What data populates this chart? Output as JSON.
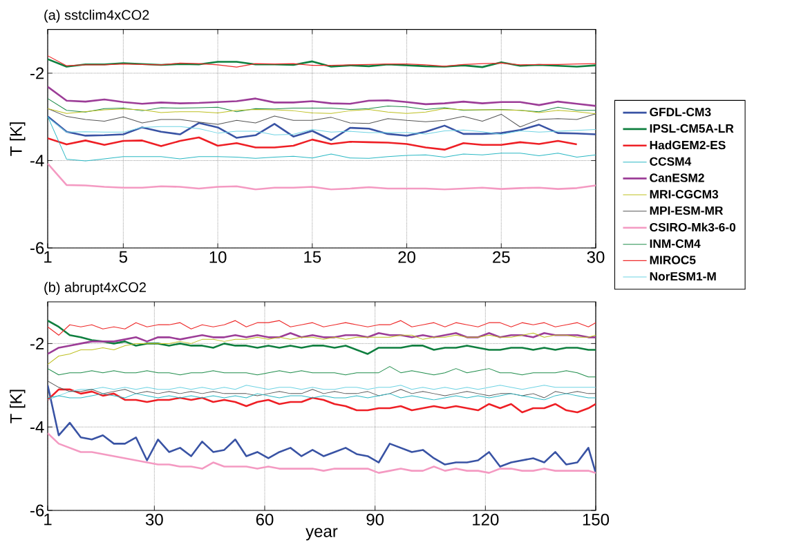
{
  "chart_data": [
    {
      "type": "line",
      "title": "(a)  sstclim4xCO2",
      "ylabel": "T [K]",
      "xlim": [
        1,
        30
      ],
      "ylim": [
        -6,
        -1
      ],
      "xticks": [
        1,
        5,
        10,
        15,
        20,
        25,
        30
      ],
      "yticks": [
        -6,
        -4,
        -2
      ],
      "grid": true,
      "legend": "right",
      "marker": "none",
      "line_style": "solid",
      "x": [
        1,
        2,
        3,
        4,
        5,
        6,
        7,
        8,
        9,
        10,
        11,
        12,
        13,
        14,
        15,
        16,
        17,
        18,
        19,
        20,
        21,
        22,
        23,
        24,
        25,
        26,
        27,
        28,
        29,
        30
      ],
      "series": [
        {
          "name": "GFDL-CM3",
          "color": "#3953a4",
          "values": [
            -2.99,
            -3.34,
            -3.43,
            -3.42,
            -3.4,
            -3.24,
            -3.34,
            -3.4,
            -3.14,
            -3.24,
            -3.48,
            -3.42,
            -3.16,
            -3.45,
            -3.32,
            -3.53,
            -3.25,
            -3.27,
            -3.39,
            -3.43,
            -3.34,
            -3.2,
            -3.39,
            -3.39,
            -3.37,
            -3.3,
            -3.18,
            -3.37,
            -3.38,
            -3.4
          ]
        },
        {
          "name": "IPSL-CM5A-LR",
          "color": "#0f7f3f",
          "values": [
            -1.68,
            -1.85,
            -1.8,
            -1.8,
            -1.77,
            -1.79,
            -1.81,
            -1.79,
            -1.8,
            -1.74,
            -1.74,
            -1.8,
            -1.8,
            -1.81,
            -1.73,
            -1.85,
            -1.82,
            -1.84,
            -1.8,
            -1.82,
            -1.84,
            -1.85,
            -1.82,
            -1.86,
            -1.75,
            -1.83,
            -1.81,
            -1.83,
            -1.85,
            -1.82
          ]
        },
        {
          "name": "HadGEM2-ES",
          "color": "#ee1f25",
          "values": [
            -3.49,
            -3.63,
            -3.54,
            -3.64,
            -3.55,
            -3.54,
            -3.67,
            -3.55,
            -3.47,
            -3.66,
            -3.6,
            -3.7,
            -3.7,
            -3.66,
            -3.52,
            -3.62,
            -3.57,
            -3.58,
            -3.59,
            -3.62,
            -3.7,
            -3.75,
            -3.6,
            -3.64,
            -3.64,
            -3.58,
            -3.62,
            -3.55,
            -3.63,
            null
          ]
        },
        {
          "name": "CCSM4",
          "color": "#2ab8c4",
          "values": [
            -2.99,
            -3.97,
            -4.01,
            -3.96,
            -3.91,
            -3.91,
            -3.91,
            -3.96,
            -3.91,
            -3.91,
            -3.92,
            -3.95,
            -3.92,
            -3.9,
            -3.94,
            -3.85,
            -3.94,
            -3.95,
            -3.91,
            -3.88,
            -3.87,
            -3.92,
            -3.85,
            -3.87,
            -3.83,
            -3.83,
            -3.89,
            -3.83,
            -3.92,
            -3.87
          ]
        },
        {
          "name": "CanESM2",
          "color": "#9c3d97",
          "values": [
            -2.31,
            -2.63,
            -2.65,
            -2.6,
            -2.66,
            -2.7,
            -2.67,
            -2.69,
            -2.68,
            -2.66,
            -2.64,
            -2.58,
            -2.67,
            -2.67,
            -2.64,
            -2.69,
            -2.7,
            -2.63,
            -2.62,
            -2.66,
            -2.71,
            -2.69,
            -2.65,
            -2.69,
            -2.66,
            -2.66,
            -2.73,
            -2.65,
            -2.7,
            -2.75
          ]
        },
        {
          "name": "MRI-CGCM3",
          "color": "#bdbf1f",
          "values": [
            -2.81,
            -2.92,
            -2.88,
            -2.84,
            -2.82,
            -2.84,
            -2.9,
            -2.88,
            -2.88,
            -2.91,
            -2.85,
            -2.83,
            -2.84,
            -2.86,
            -2.91,
            -2.92,
            -2.86,
            -2.83,
            -2.89,
            -2.92,
            -2.89,
            -2.81,
            -2.84,
            -2.84,
            -2.84,
            -2.85,
            -2.9,
            -2.85,
            -2.88,
            -2.93
          ]
        },
        {
          "name": "MPI-ESM-MR",
          "color": "#555555",
          "values": [
            -2.81,
            -2.99,
            -3.06,
            -3.1,
            -3.0,
            -3.14,
            -3.06,
            -3.06,
            -3.12,
            -3.17,
            -3.08,
            -3.14,
            -2.98,
            -3.08,
            -3.08,
            -3.01,
            -3.14,
            -3.15,
            -3.04,
            -3.08,
            -3.11,
            -3.08,
            -2.99,
            -3.1,
            -2.94,
            -3.23,
            -3.06,
            -3.04,
            -3.06,
            -2.93
          ]
        },
        {
          "name": "CSIRO-Mk3-6-0",
          "color": "#f49ac2",
          "values": [
            -4.07,
            -4.56,
            -4.57,
            -4.6,
            -4.62,
            -4.62,
            -4.59,
            -4.6,
            -4.64,
            -4.6,
            -4.59,
            -4.66,
            -4.62,
            -4.62,
            -4.6,
            -4.66,
            -4.64,
            -4.61,
            -4.64,
            -4.64,
            -4.64,
            -4.66,
            -4.64,
            -4.62,
            -4.65,
            -4.63,
            -4.62,
            -4.65,
            -4.63,
            -4.57
          ]
        },
        {
          "name": "INM-CM4",
          "color": "#1e8c4a",
          "values": [
            -2.58,
            -2.85,
            -2.89,
            -2.81,
            -2.8,
            -2.86,
            -2.79,
            -2.8,
            -2.79,
            -2.78,
            -2.88,
            -2.81,
            -2.82,
            -2.8,
            -2.8,
            -2.8,
            -2.83,
            -2.81,
            -2.75,
            -2.77,
            -2.83,
            -2.79,
            -2.85,
            -2.84,
            -2.83,
            -2.85,
            -2.88,
            -2.78,
            -2.85,
            -2.85
          ]
        },
        {
          "name": "MIROC5",
          "color": "#ee2a2a",
          "values": [
            -1.6,
            -1.83,
            -1.81,
            -1.81,
            -1.79,
            -1.8,
            -1.81,
            -1.77,
            -1.78,
            -1.81,
            -1.86,
            -1.78,
            -1.79,
            -1.78,
            -1.82,
            -1.82,
            -1.81,
            -1.8,
            -1.79,
            -1.79,
            -1.81,
            -1.84,
            -1.8,
            -1.78,
            -1.77,
            -1.81,
            -1.8,
            -1.8,
            -1.79,
            -1.78
          ]
        },
        {
          "name": "NorESM1-M",
          "color": "#6fd3e3",
          "values": [
            -3.01,
            -3.35,
            -3.34,
            -3.35,
            -3.35,
            -3.24,
            -3.22,
            -3.22,
            -3.27,
            -3.37,
            -3.33,
            -3.33,
            -3.41,
            -3.4,
            -3.29,
            -3.35,
            -3.33,
            -3.36,
            -3.36,
            -3.36,
            -3.39,
            -3.32,
            -3.3,
            -3.34,
            -3.4,
            -3.32,
            -3.35,
            -3.33,
            -3.31,
            -3.29
          ]
        }
      ]
    },
    {
      "type": "line",
      "title": "(b)  abrupt4xCO2",
      "xlabel": "year",
      "ylabel": "T [K]",
      "xlim": [
        1,
        150
      ],
      "ylim": [
        -6,
        -1
      ],
      "xticks": [
        1,
        30,
        60,
        90,
        120,
        150
      ],
      "yticks": [
        -6,
        -4,
        -2
      ],
      "grid": true,
      "marker": "none",
      "line_style": "solid",
      "x": [
        1,
        4,
        7,
        10,
        13,
        16,
        19,
        22,
        25,
        28,
        31,
        34,
        37,
        40,
        43,
        46,
        49,
        52,
        55,
        58,
        61,
        64,
        67,
        70,
        73,
        76,
        79,
        82,
        85,
        88,
        91,
        94,
        97,
        100,
        103,
        106,
        109,
        112,
        115,
        118,
        121,
        124,
        127,
        130,
        133,
        136,
        139,
        142,
        145,
        148,
        150
      ],
      "series": [
        {
          "color": "#3953a4",
          "values": [
            -3.0,
            -4.2,
            -3.9,
            -4.25,
            -4.3,
            -4.2,
            -4.4,
            -4.4,
            -4.25,
            -4.8,
            -4.3,
            -4.6,
            -4.5,
            -4.7,
            -4.35,
            -4.6,
            -4.55,
            -4.3,
            -4.7,
            -4.6,
            -4.75,
            -4.6,
            -4.5,
            -4.7,
            -4.55,
            -4.7,
            -4.6,
            -4.5,
            -4.65,
            -4.7,
            -4.85,
            -4.4,
            -4.5,
            -4.6,
            -4.55,
            -4.75,
            -4.9,
            -4.85,
            -4.85,
            -4.8,
            -4.6,
            -4.95,
            -4.85,
            -4.8,
            -4.75,
            -4.85,
            -4.6,
            -4.9,
            -4.85,
            -4.5,
            -5.1
          ]
        },
        {
          "color": "#0f7f3f",
          "values": [
            -1.45,
            -1.6,
            -1.8,
            -1.85,
            -1.92,
            -1.95,
            -2.0,
            -1.95,
            -2.05,
            -2.0,
            -2.0,
            -2.05,
            -2.0,
            -2.05,
            -2.05,
            -2.1,
            -2.0,
            -2.05,
            -2.05,
            -2.1,
            -2.05,
            -2.1,
            -2.05,
            -2.1,
            -2.05,
            -2.05,
            -2.1,
            -2.05,
            -2.15,
            -2.25,
            -2.1,
            -2.1,
            -2.1,
            -2.05,
            -2.05,
            -2.15,
            -2.1,
            -2.1,
            -2.05,
            -2.1,
            -2.15,
            -2.15,
            -2.1,
            -2.1,
            -2.15,
            -2.1,
            -2.15,
            -2.1,
            -2.1,
            -2.15,
            -2.15
          ]
        },
        {
          "color": "#ee1f25",
          "values": [
            -3.35,
            -3.1,
            -3.1,
            -3.2,
            -3.15,
            -3.25,
            -3.2,
            -3.35,
            -3.35,
            -3.4,
            -3.35,
            -3.35,
            -3.3,
            -3.35,
            -3.3,
            -3.4,
            -3.35,
            -3.4,
            -3.5,
            -3.4,
            -3.35,
            -3.45,
            -3.4,
            -3.4,
            -3.3,
            -3.35,
            -3.45,
            -3.5,
            -3.6,
            -3.6,
            -3.55,
            -3.55,
            -3.5,
            -3.6,
            -3.55,
            -3.5,
            -3.55,
            -3.5,
            -3.55,
            -3.6,
            -3.45,
            -3.55,
            -3.45,
            -3.65,
            -3.55,
            -3.55,
            -3.45,
            -3.6,
            -3.65,
            -3.55,
            -3.45
          ]
        },
        {
          "color": "#2ab8c4",
          "values": [
            -3.3,
            -3.25,
            -3.3,
            -3.3,
            -3.25,
            -3.2,
            -3.25,
            -3.3,
            -3.2,
            -3.25,
            -3.3,
            -3.25,
            -3.3,
            -3.25,
            -3.3,
            -3.25,
            -3.3,
            -3.25,
            -3.3,
            -3.2,
            -3.25,
            -3.3,
            -3.25,
            -3.25,
            -3.3,
            -3.25,
            -3.3,
            -3.3,
            -3.25,
            -3.3,
            -3.25,
            -3.2,
            -3.3,
            -3.25,
            -3.3,
            -3.35,
            -3.3,
            -3.25,
            -3.3,
            -3.25,
            -3.3,
            -3.25,
            -3.2,
            -3.25,
            -3.3,
            -3.35,
            -3.25,
            -3.2,
            -3.25,
            -3.3,
            -3.3
          ]
        },
        {
          "color": "#9c3d97",
          "values": [
            -2.25,
            -2.1,
            -2.05,
            -2.0,
            -1.95,
            -1.95,
            -1.95,
            -1.9,
            -1.85,
            -1.95,
            -1.85,
            -1.85,
            -1.9,
            -1.85,
            -1.8,
            -1.85,
            -1.85,
            -1.8,
            -1.85,
            -1.8,
            -1.85,
            -1.85,
            -1.75,
            -1.85,
            -1.8,
            -1.85,
            -1.85,
            -1.8,
            -1.8,
            -1.85,
            -1.75,
            -1.8,
            -1.8,
            -1.85,
            -1.8,
            -1.85,
            -1.8,
            -1.75,
            -1.85,
            -1.85,
            -1.75,
            -1.85,
            -1.8,
            -1.8,
            -1.85,
            -1.75,
            -1.8,
            -1.8,
            -1.8,
            -1.85,
            -1.85
          ]
        },
        {
          "color": "#bdbf1f",
          "values": [
            -2.5,
            -2.3,
            -2.25,
            -2.15,
            -2.15,
            -2.1,
            -2.15,
            -2.05,
            -2.0,
            -2.0,
            -2.0,
            -2.0,
            -1.95,
            -2.0,
            -1.9,
            -1.9,
            -1.95,
            -1.9,
            -1.9,
            -1.85,
            -1.9,
            -1.85,
            -1.9,
            -1.85,
            -1.85,
            -1.9,
            -1.85,
            -1.9,
            -1.85,
            -1.85,
            -1.85,
            -1.85,
            -1.8,
            -1.8,
            -1.9,
            -1.85,
            -1.85,
            -1.8,
            -1.85,
            -1.85,
            -1.8,
            -1.85,
            -1.85,
            -1.8,
            -1.75,
            -1.85,
            -1.8,
            -1.8,
            -1.85,
            -1.85,
            -1.8
          ]
        },
        {
          "color": "#555555",
          "values": [
            -2.9,
            -3.05,
            -3.15,
            -3.15,
            -3.1,
            -3.2,
            -3.15,
            -3.1,
            -3.2,
            -3.15,
            -3.2,
            -3.15,
            -3.2,
            -3.15,
            -3.2,
            -3.15,
            -3.2,
            -3.2,
            -3.2,
            -3.25,
            -3.2,
            -3.15,
            -3.2,
            -3.2,
            -3.1,
            -3.2,
            -3.15,
            -3.2,
            -3.2,
            -3.15,
            -3.25,
            -3.2,
            -3.1,
            -3.2,
            -3.15,
            -3.2,
            -3.25,
            -3.2,
            -3.15,
            -3.2,
            -3.25,
            -3.2,
            -3.2,
            -3.25,
            -3.2,
            -3.3,
            -3.15,
            -3.2,
            -3.15,
            -3.2,
            -3.2
          ]
        },
        {
          "color": "#f49ac2",
          "values": [
            -4.15,
            -4.4,
            -4.5,
            -4.6,
            -4.6,
            -4.65,
            -4.7,
            -4.75,
            -4.8,
            -4.85,
            -4.9,
            -4.9,
            -4.95,
            -4.95,
            -5.0,
            -4.85,
            -4.95,
            -4.95,
            -4.95,
            -5.0,
            -4.95,
            -5.0,
            -5.0,
            -5.0,
            -5.0,
            -5.05,
            -5.0,
            -5.0,
            -5.0,
            -5.0,
            -5.1,
            -5.05,
            -5.0,
            -5.05,
            -5.05,
            -4.95,
            -5.05,
            -5.0,
            -5.05,
            -5.05,
            -5.1,
            -5.0,
            -5.0,
            -5.05,
            -5.05,
            -5.0,
            -5.05,
            -5.05,
            -5.05,
            -5.05,
            -5.1
          ]
        },
        {
          "color": "#1e8c4a",
          "values": [
            -2.6,
            -2.75,
            -2.7,
            -2.7,
            -2.65,
            -2.7,
            -2.65,
            -2.7,
            -2.7,
            -2.65,
            -2.7,
            -2.7,
            -2.75,
            -2.7,
            -2.7,
            -2.65,
            -2.7,
            -2.7,
            -2.7,
            -2.75,
            -2.7,
            -2.65,
            -2.7,
            -2.65,
            -2.7,
            -2.7,
            -2.7,
            -2.75,
            -2.7,
            -2.7,
            -2.7,
            -2.55,
            -2.7,
            -2.65,
            -2.7,
            -2.75,
            -2.7,
            -2.6,
            -2.7,
            -2.65,
            -2.6,
            -2.7,
            -2.7,
            -2.75,
            -2.7,
            -2.7,
            -2.7,
            -2.65,
            -2.7,
            -2.8,
            -2.8
          ]
        },
        {
          "color": "#ee2a2a",
          "values": [
            -1.6,
            -1.8,
            -1.55,
            -1.6,
            -1.55,
            -1.65,
            -1.6,
            -1.65,
            -1.5,
            -1.6,
            -1.55,
            -1.55,
            -1.5,
            -1.65,
            -1.55,
            -1.6,
            -1.55,
            -1.45,
            -1.6,
            -1.5,
            -1.5,
            -1.45,
            -1.6,
            -1.55,
            -1.5,
            -1.6,
            -1.55,
            -1.5,
            -1.55,
            -1.6,
            -1.55,
            -1.55,
            -1.45,
            -1.6,
            -1.55,
            -1.5,
            -1.6,
            -1.5,
            -1.55,
            -1.6,
            -1.5,
            -1.5,
            -1.6,
            -1.5,
            -1.55,
            -1.5,
            -1.6,
            -1.55,
            -1.5,
            -1.6,
            -1.5
          ]
        },
        {
          "color": "#6fd3e3",
          "values": [
            -3.35,
            -3.25,
            -3.15,
            -3.1,
            -3.1,
            -3.05,
            -3.1,
            -3.05,
            -3.1,
            -3.05,
            -3.1,
            -3.1,
            -3.05,
            -3.1,
            -3.05,
            -3.1,
            -3.05,
            -3.1,
            -3.0,
            -3.05,
            -3.1,
            -3.05,
            -3.05,
            -3.1,
            -3.05,
            -3.1,
            -3.1,
            -3.05,
            -3.05,
            -3.1,
            -3.05,
            -3.05,
            -3.0,
            -3.1,
            -3.05,
            -3.1,
            -3.05,
            -3.1,
            -3.05,
            -3.1,
            -3.05,
            -3.0,
            -3.05,
            -3.1,
            -3.05,
            -3.0,
            -3.05,
            -3.05,
            -3.05,
            -3.05,
            -3.05
          ]
        }
      ]
    }
  ]
}
